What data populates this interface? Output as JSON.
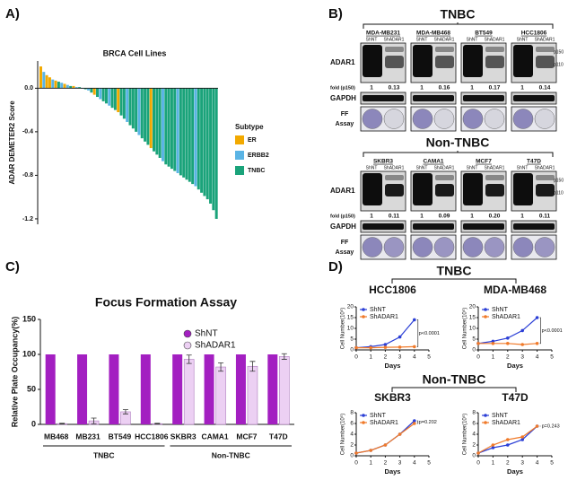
{
  "panels": [
    "A)",
    "B)",
    "C)",
    "D)"
  ],
  "blots": {
    "labels": {
      "shnt": "ShNT",
      "shadar": "ShADAR1",
      "adar": "ADAR1",
      "fold": "fold (p150)",
      "gapdh": "GAPDH",
      "ff": [
        "FF",
        "Assay"
      ],
      "bands": [
        "p150",
        "p110"
      ]
    },
    "groups": [
      {
        "title": "TNBC",
        "lines": [
          {
            "name": "MDA-MB231",
            "fold": [
              "1",
              "0.13"
            ]
          },
          {
            "name": "MDA-MB468",
            "fold": [
              "1",
              "0.16"
            ]
          },
          {
            "name": "BT549",
            "fold": [
              "1",
              "0.17"
            ]
          },
          {
            "name": "HCC1806",
            "fold": [
              "1",
              "0.14"
            ]
          }
        ]
      },
      {
        "title": "Non-TNBC",
        "lines": [
          {
            "name": "SKBR3",
            "fold": [
              "1",
              "0.11"
            ]
          },
          {
            "name": "CAMA1",
            "fold": [
              "1",
              "0.09"
            ]
          },
          {
            "name": "MCF7",
            "fold": [
              "1",
              "0.20"
            ]
          },
          {
            "name": "T47D",
            "fold": [
              "1",
              "0.11"
            ]
          }
        ]
      }
    ]
  },
  "panel_d": {
    "group_labels": [
      "TNBC",
      "Non-TNBC"
    ]
  },
  "chart_data": [
    {
      "type": "bar",
      "title": "BRCA Cell Lines",
      "ylabel": "ADAR DEMETER2 Score",
      "ylim": [
        -1.25,
        0.25
      ],
      "yticks": [
        {
          "value": 0,
          "label": "0.0"
        },
        -0.4,
        -0.8,
        -1.2
      ],
      "legend_title": "Subtype",
      "legend": [
        {
          "name": "ER",
          "color": "#f2a900"
        },
        {
          "name": "ERBB2",
          "color": "#5ab4e5"
        },
        {
          "name": "TNBC",
          "color": "#1aa37a"
        }
      ],
      "categories": [
        null,
        null,
        null,
        null,
        null,
        null,
        null,
        null,
        null,
        null,
        null,
        null,
        null,
        null,
        null,
        null,
        null,
        null,
        null,
        null,
        null,
        null,
        null,
        null,
        null,
        null,
        null,
        null,
        null,
        null,
        null,
        null,
        null,
        null,
        null,
        null,
        null,
        null,
        null,
        null,
        null,
        null,
        null,
        null,
        null,
        null,
        null,
        null,
        null,
        null,
        null,
        null,
        null,
        null,
        null,
        null,
        null,
        null,
        null,
        null
      ],
      "values": [
        0.2,
        0.15,
        0.12,
        0.1,
        0.08,
        0.07,
        0.06,
        0.05,
        0.04,
        0.03,
        0.02,
        0.02,
        0.01,
        0.01,
        0.0,
        -0.01,
        -0.02,
        -0.04,
        -0.06,
        -0.08,
        -0.1,
        -0.12,
        -0.14,
        -0.16,
        -0.18,
        -0.2,
        -0.22,
        -0.25,
        -0.28,
        -0.31,
        -0.34,
        -0.37,
        -0.4,
        -0.43,
        -0.46,
        -0.49,
        -0.52,
        -0.55,
        -0.58,
        -0.61,
        -0.64,
        -0.67,
        -0.7,
        -0.72,
        -0.74,
        -0.76,
        -0.78,
        -0.8,
        -0.82,
        -0.84,
        -0.86,
        -0.88,
        -0.9,
        -0.93,
        -0.96,
        -0.99,
        -1.02,
        -1.06,
        -1.12,
        -1.2
      ],
      "colors": [
        "#f2a900",
        "#5ab4e5",
        "#f2a900",
        "#f2a900",
        "#5ab4e5",
        "#f2a900",
        "#1aa37a",
        "#5ab4e5",
        "#f2a900",
        "#5ab4e5",
        "#1aa37a",
        "#f2a900",
        "#5ab4e5",
        "#1aa37a",
        "#5ab4e5",
        "#1aa37a",
        "#5ab4e5",
        "#1aa37a",
        "#f2a900",
        "#1aa37a",
        "#5ab4e5",
        "#1aa37a",
        "#1aa37a",
        "#5ab4e5",
        "#1aa37a",
        "#1aa37a",
        "#f2a900",
        "#1aa37a",
        "#1aa37a",
        "#5ab4e5",
        "#1aa37a",
        "#1aa37a",
        "#1aa37a",
        "#5ab4e5",
        "#1aa37a",
        "#1aa37a",
        "#1aa37a",
        "#f2a900",
        "#1aa37a",
        "#1aa37a",
        "#1aa37a",
        "#5ab4e5",
        "#1aa37a",
        "#1aa37a",
        "#1aa37a",
        "#1aa37a",
        "#5ab4e5",
        "#1aa37a",
        "#1aa37a",
        "#1aa37a",
        "#1aa37a",
        "#1aa37a",
        "#5ab4e5",
        "#1aa37a",
        "#1aa37a",
        "#1aa37a",
        "#1aa37a",
        "#1aa37a",
        "#1aa37a",
        "#1aa37a"
      ]
    },
    {
      "type": "grouped_bar",
      "title": "Focus Formation Assay",
      "ylabel": "Relative Plate Occupancy(%)",
      "ylim": [
        0,
        150
      ],
      "yticks": [
        0,
        50,
        100,
        150
      ],
      "categories": [
        "MB468",
        "MB231",
        "BT549",
        "HCC1806",
        "SKBR3",
        "CAMA1",
        "MCF7",
        "T47D"
      ],
      "group_labels": [
        "TNBC",
        "Non-TNBC"
      ],
      "series": [
        {
          "name": "ShNT",
          "color": "#a31fc1",
          "values": [
            100,
            100,
            100,
            100,
            100,
            100,
            100,
            100
          ]
        },
        {
          "name": "ShADAR1",
          "color": "#ecd0f3",
          "values": [
            1,
            5,
            18,
            1,
            93,
            82,
            83,
            97
          ],
          "errors": [
            0.5,
            4,
            3,
            0.5,
            6,
            6,
            7,
            4
          ]
        }
      ]
    },
    {
      "type": "line",
      "title": "HCC1806",
      "xlabel": "Days",
      "ylabel": "Cell Number(10⁵)",
      "annotation": "p<0.0001",
      "x": [
        0,
        1,
        2,
        3,
        4
      ],
      "xlim": [
        0,
        5
      ],
      "xticks": [
        0,
        1,
        2,
        3,
        4,
        5
      ],
      "ylim": [
        0,
        20
      ],
      "yticks": [
        0,
        5,
        10,
        15,
        20
      ],
      "series": [
        {
          "name": "ShNT",
          "color": "#2b3fd6",
          "values": [
            1,
            1.5,
            2.5,
            6,
            14
          ]
        },
        {
          "name": "ShADAR1",
          "color": "#f07a2a",
          "values": [
            1,
            1,
            1.2,
            1.3,
            1.5
          ]
        }
      ]
    },
    {
      "type": "line",
      "title": "MDA-MB468",
      "xlabel": "Days",
      "ylabel": "Cell Number(10⁵)",
      "annotation": "p<0.0001",
      "x": [
        0,
        1,
        2,
        3,
        4
      ],
      "xlim": [
        0,
        5
      ],
      "xticks": [
        0,
        1,
        2,
        3,
        4,
        5
      ],
      "ylim": [
        0,
        20
      ],
      "yticks": [
        0,
        5,
        10,
        15,
        20
      ],
      "series": [
        {
          "name": "ShNT",
          "color": "#2b3fd6",
          "values": [
            3,
            4,
            5.5,
            9,
            15
          ]
        },
        {
          "name": "ShADAR1",
          "color": "#f07a2a",
          "values": [
            3,
            3,
            3,
            2.5,
            3
          ]
        }
      ]
    },
    {
      "type": "line",
      "title": "SKBR3",
      "xlabel": "Days",
      "ylabel": "Cell Number(10⁵)",
      "annotation": "p=0.202",
      "x": [
        0,
        1,
        2,
        3,
        4
      ],
      "xlim": [
        0,
        5
      ],
      "xticks": [
        0,
        1,
        2,
        3,
        4,
        5
      ],
      "ylim": [
        0,
        8
      ],
      "yticks": [
        0,
        2,
        4,
        6,
        8
      ],
      "series": [
        {
          "name": "ShNT",
          "color": "#2b3fd6",
          "values": [
            0.5,
            1,
            2,
            4,
            6.5
          ]
        },
        {
          "name": "ShADAR1",
          "color": "#f07a2a",
          "values": [
            0.5,
            1,
            2,
            4,
            6
          ]
        }
      ]
    },
    {
      "type": "line",
      "title": "T47D",
      "xlabel": "Days",
      "ylabel": "Cell Number(10⁵)",
      "annotation": "p=0.243",
      "x": [
        0,
        1,
        2,
        3,
        4
      ],
      "xlim": [
        0,
        5
      ],
      "xticks": [
        0,
        1,
        2,
        3,
        4,
        5
      ],
      "ylim": [
        0,
        8
      ],
      "yticks": [
        0,
        2,
        4,
        6,
        8
      ],
      "series": [
        {
          "name": "ShNT",
          "color": "#2b3fd6",
          "values": [
            0.5,
            1.5,
            2,
            3,
            5.5
          ]
        },
        {
          "name": "ShADAR1",
          "color": "#f07a2a",
          "values": [
            0.5,
            2,
            3,
            3.5,
            5.5
          ]
        }
      ]
    }
  ]
}
